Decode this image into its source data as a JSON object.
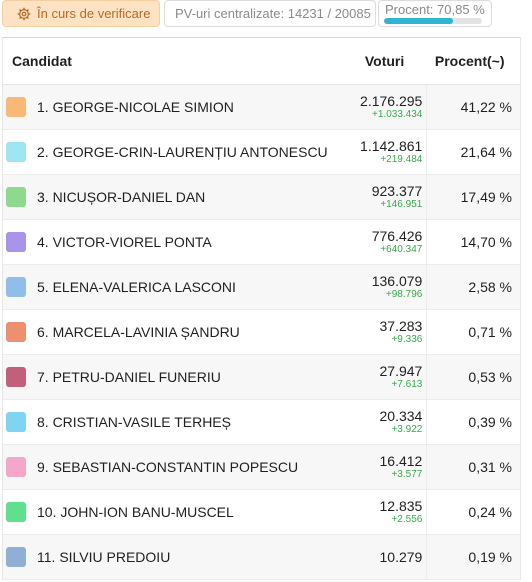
{
  "header": {
    "status_label": "În curs de verificare",
    "pv_label": "PV-uri centralizate: 14231 / 20085",
    "progress_label": "Procent: 70,85 %",
    "progress_value": 70.85
  },
  "table": {
    "col_candidate": "Candidat",
    "col_votes": "Voturi",
    "col_percent": "Procent(~)",
    "rows": [
      {
        "name": "1. GEORGE-NICOLAE SIMION",
        "votes": "2.176.295",
        "delta": "+1.033.434",
        "percent": "41,22 %",
        "color": "#f8b878"
      },
      {
        "name": "2. GEORGE-CRIN-LAURENȚIU ANTONESCU",
        "votes": "1.142.861",
        "delta": "+219.484",
        "percent": "21,64 %",
        "color": "#9ee7f2"
      },
      {
        "name": "3. NICUȘOR-DANIEL DAN",
        "votes": "923.377",
        "delta": "+146.951",
        "percent": "17,49 %",
        "color": "#8fd98f"
      },
      {
        "name": "4. VICTOR-VIOREL PONTA",
        "votes": "776.426",
        "delta": "+640.347",
        "percent": "14,70 %",
        "color": "#a994ea"
      },
      {
        "name": "5. ELENA-VALERICA LASCONI",
        "votes": "136.079",
        "delta": "+98.796",
        "percent": "2,58 %",
        "color": "#93bde9"
      },
      {
        "name": "6. MARCELA-LAVINIA ȘANDRU",
        "votes": "37.283",
        "delta": "+9.336",
        "percent": "0,71 %",
        "color": "#ec9070"
      },
      {
        "name": "7. PETRU-DANIEL FUNERIU",
        "votes": "27.947",
        "delta": "+7.613",
        "percent": "0,53 %",
        "color": "#c2607c"
      },
      {
        "name": "8. CRISTIAN-VASILE TERHEȘ",
        "votes": "20.334",
        "delta": "+3.922",
        "percent": "0,39 %",
        "color": "#7fd4f2"
      },
      {
        "name": "9. SEBASTIAN-CONSTANTIN POPESCU",
        "votes": "16.412",
        "delta": "+3.577",
        "percent": "0,31 %",
        "color": "#f3a8cb"
      },
      {
        "name": "10. JOHN-ION BANU-MUSCEL",
        "votes": "12.835",
        "delta": "+2.556",
        "percent": "0,24 %",
        "color": "#5ee08d"
      },
      {
        "name": "11. SILVIU PREDOIU",
        "votes": "10.279",
        "delta": "",
        "percent": "0,19 %",
        "color": "#8fb0d4"
      }
    ]
  }
}
